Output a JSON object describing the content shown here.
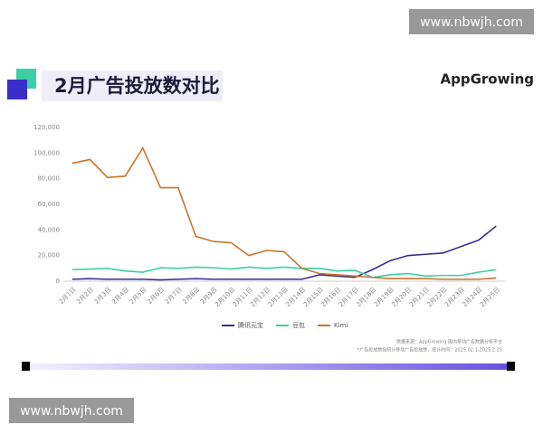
{
  "watermark": "www.nbwjh.com",
  "chart_data": {
    "type": "line",
    "title": "2月广告投放数对比",
    "logo": "AppGrowing",
    "notes": [
      "数据来源：AppGrowing 国内移动广告数据分析平台",
      "*广告投放数指统计移动广告投放数，统计时间：2025.02.1-2025.2.25"
    ],
    "categories": [
      "2月1日",
      "2月2日",
      "2月3日",
      "2月4日",
      "2月5日",
      "2月6日",
      "2月7日",
      "2月8日",
      "2月9日",
      "2月10日",
      "2月11日",
      "2月12日",
      "2月13日",
      "2月14日",
      "2月15日",
      "2月16日",
      "2月17日",
      "2月18日",
      "2月19日",
      "2月20日",
      "2月21日",
      "2月22日",
      "2月23日",
      "2月24日",
      "2月25日"
    ],
    "series": [
      {
        "name": "腾讯元宝",
        "color": "#3b2d8f",
        "values": [
          1500,
          2000,
          1500,
          1500,
          1500,
          1000,
          1500,
          2000,
          1500,
          1500,
          1500,
          1500,
          1500,
          1500,
          5000,
          4000,
          3000,
          9000,
          16000,
          20000,
          21000,
          22000,
          27000,
          32000,
          43000
        ]
      },
      {
        "name": "豆包",
        "color": "#3ccfa5",
        "values": [
          9000,
          9500,
          10000,
          8000,
          7000,
          10500,
          10000,
          11000,
          10500,
          9500,
          11000,
          10000,
          11000,
          10000,
          10000,
          8000,
          8500,
          3000,
          5000,
          6000,
          4000,
          4500,
          4500,
          7000,
          9000
        ]
      },
      {
        "name": "Kimi",
        "color": "#c8742c",
        "values": [
          92000,
          95000,
          81000,
          82000,
          104000,
          73000,
          73000,
          35000,
          31000,
          30000,
          20000,
          24000,
          23000,
          10000,
          6000,
          5000,
          4000,
          3000,
          2000,
          2000,
          2000,
          1500,
          1500,
          1500,
          2500
        ]
      }
    ],
    "ylim": [
      0,
      120000
    ],
    "yticks": [
      0,
      {
        "value": 20000,
        "label": "20,000"
      },
      {
        "value": 40000,
        "label": "40,000"
      },
      {
        "value": 60000,
        "label": "60,000"
      },
      {
        "value": 80000,
        "label": "80,000"
      },
      {
        "value": 100000,
        "label": "100,000"
      },
      {
        "value": 120000,
        "label": "120,000"
      }
    ],
    "legend": "bottom"
  }
}
